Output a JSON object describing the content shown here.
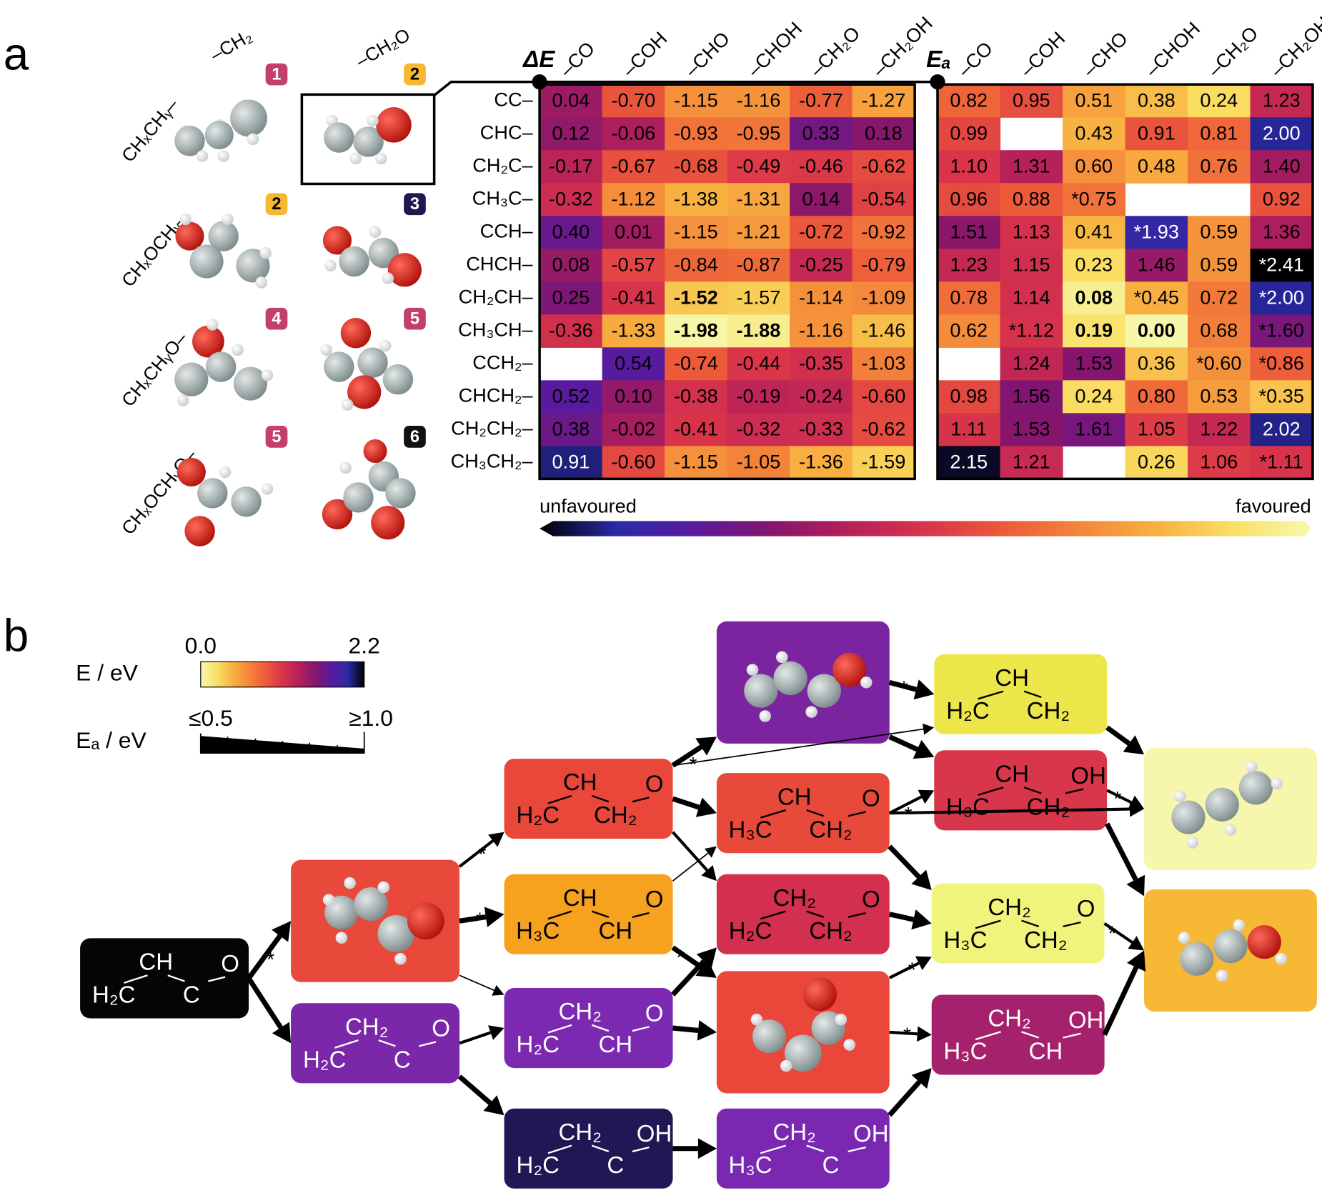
{
  "panel_a": {
    "label": "a",
    "structures": {
      "columns": [
        "–CH₂",
        "–CH₂O"
      ],
      "rows": [
        "CHₓCHᵧ–",
        "CHₓOCHᵧ–",
        "CHₓCHᵧO–",
        "CHₓOCHᵧO–"
      ],
      "badges": [
        "1",
        "2",
        "2",
        "3",
        "4",
        "5",
        "5",
        "6"
      ]
    },
    "rows": [
      "CC–",
      "CHC–",
      "CH₂C–",
      "CH₃C–",
      "CCH–",
      "CHCH–",
      "CH₂CH–",
      "CH₃CH–",
      "CCH₂–",
      "CHCH₂–",
      "CH₂CH₂–",
      "CH₃CH₂–"
    ],
    "heatmaps": [
      {
        "title": "ΔE",
        "columns": [
          "–CO",
          "–COH",
          "–CHO",
          "–CHOH",
          "–CH₂O",
          "–CH₂OH"
        ],
        "cells": [
          [
            "0.04",
            "-0.70",
            "-1.15",
            "-1.16",
            "-0.77",
            "-1.27"
          ],
          [
            "0.12",
            "-0.06",
            "-0.93",
            "-0.95",
            "0.33",
            "0.18"
          ],
          [
            "-0.17",
            "-0.67",
            "-0.68",
            "-0.49",
            "-0.46",
            "-0.62"
          ],
          [
            "-0.32",
            "-1.12",
            "-1.38",
            "-1.31",
            "0.14",
            "-0.54"
          ],
          [
            "0.40",
            "0.01",
            "-1.15",
            "-1.21",
            "-0.72",
            "-0.92"
          ],
          [
            "0.08",
            "-0.57",
            "-0.84",
            "-0.87",
            "-0.25",
            "-0.79"
          ],
          [
            "0.25",
            "-0.41",
            "-1.52",
            "-1.57",
            "-1.14",
            "-1.09"
          ],
          [
            "-0.36",
            "-1.33",
            "-1.98",
            "-1.88",
            "-1.16",
            "-1.46"
          ],
          [
            null,
            "0.54",
            "-0.74",
            "-0.44",
            "-0.35",
            "-1.03"
          ],
          [
            "0.52",
            "0.10",
            "-0.38",
            "-0.19",
            "-0.24",
            "-0.60"
          ],
          [
            "0.38",
            "-0.02",
            "-0.41",
            "-0.32",
            "-0.33",
            "-0.62"
          ],
          [
            "0.91",
            "-0.60",
            "-1.15",
            "-1.05",
            "-1.36",
            "-1.59"
          ]
        ],
        "bold_cells": [
          [
            6,
            2
          ],
          [
            7,
            2
          ],
          [
            7,
            3
          ]
        ]
      },
      {
        "title": "Eₐ",
        "columns": [
          "–CO",
          "–COH",
          "–CHO",
          "–CHOH",
          "–CH₂O",
          "–CH₂OH"
        ],
        "cells": [
          [
            "0.82",
            "0.95",
            "0.51",
            "0.38",
            "0.24",
            "1.23"
          ],
          [
            "0.99",
            null,
            "0.43",
            "0.91",
            "0.81",
            "2.00"
          ],
          [
            "1.10",
            "1.31",
            "0.60",
            "0.48",
            "0.76",
            "1.40"
          ],
          [
            "0.96",
            "0.88",
            "*0.75",
            null,
            null,
            "0.92"
          ],
          [
            "1.51",
            "1.13",
            "0.41",
            "*1.93",
            "0.59",
            "1.36"
          ],
          [
            "1.23",
            "1.15",
            "0.23",
            "1.46",
            "0.59",
            "*2.41"
          ],
          [
            "0.78",
            "1.14",
            "0.08",
            "*0.45",
            "0.72",
            "*2.00"
          ],
          [
            "0.62",
            "*1.12",
            "0.19",
            "0.00",
            "0.68",
            "*1.60"
          ],
          [
            null,
            "1.24",
            "1.53",
            "0.36",
            "*0.60",
            "*0.86"
          ],
          [
            "0.98",
            "1.56",
            "0.24",
            "0.80",
            "0.53",
            "*0.35"
          ],
          [
            "1.11",
            "1.53",
            "1.61",
            "1.05",
            "1.22",
            "2.02"
          ],
          [
            "2.15",
            "1.21",
            null,
            "0.26",
            "1.06",
            "*1.11"
          ]
        ],
        "bold_cells": [
          [
            6,
            2
          ],
          [
            7,
            2
          ],
          [
            7,
            3
          ]
        ]
      }
    ],
    "scale": {
      "low": "unfavoured",
      "high": "favoured"
    }
  },
  "panel_b": {
    "label": "b",
    "legend": {
      "e_label": "E / eV",
      "e_min": "0.0",
      "e_max": "2.2",
      "ea_label": "Eₐ / eV",
      "ea_min": "≤0.5",
      "ea_max": "≥1.0"
    },
    "asterisk": "*",
    "nodes": [
      {
        "atoms": [
          "H₂C",
          "CH",
          "C",
          "O"
        ]
      },
      {
        "atoms": [
          "H₂C",
          "CH₂",
          "C",
          "O"
        ]
      },
      {
        "atoms": [
          "H₂C",
          "CH",
          "CH₂",
          "O"
        ]
      },
      {
        "atoms": [
          "H₃C",
          "CH",
          "CH",
          "O"
        ]
      },
      {
        "atoms": [
          "H₂C",
          "CH₂",
          "CH",
          "O"
        ]
      },
      {
        "atoms": [
          "H₂C",
          "CH₂",
          "C",
          "OH"
        ]
      },
      {
        "atoms": [
          "H₃C",
          "CH",
          "CH₂",
          "O"
        ]
      },
      {
        "atoms": [
          "H₂C",
          "CH₂",
          "CH₂",
          "O"
        ]
      },
      {
        "atoms": [
          "H₃C",
          "CH₂",
          "C",
          "OH"
        ]
      },
      {
        "atoms": [
          "H₂C",
          "CH",
          "CH₂"
        ]
      },
      {
        "atoms": [
          "H₃C",
          "CH",
          "CH₂",
          "OH"
        ]
      },
      {
        "atoms": [
          "H₃C",
          "CH₂",
          "CH₂",
          "O"
        ]
      },
      {
        "atoms": [
          "H₃C",
          "CH₂",
          "CH",
          "OH"
        ]
      }
    ]
  }
}
